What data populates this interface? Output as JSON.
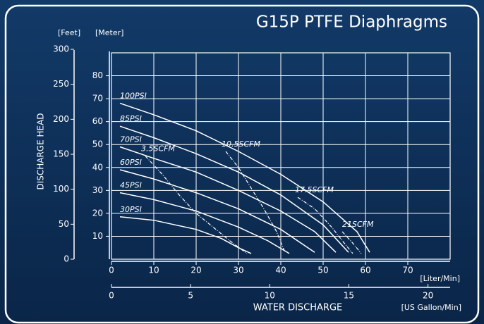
{
  "chart_data": {
    "type": "line",
    "title": "G15P PTFE Diaphragms",
    "y_label": "DISCHARGE HEAD",
    "y_unit": "[Meter]",
    "y2_unit": "[Feet]",
    "x_label": "WATER DISCHARGE",
    "x_unit": "[Liter/Min]",
    "x2_unit": "[US Gallon/Min]",
    "xlim": [
      0,
      80
    ],
    "xticks": [
      0,
      10,
      20,
      30,
      40,
      50,
      60,
      70
    ],
    "x2lim": [
      0,
      21.4
    ],
    "x2ticks": [
      0,
      5,
      10,
      15,
      20
    ],
    "ylim": [
      0,
      90
    ],
    "yticks": [
      10,
      20,
      30,
      40,
      50,
      60,
      70,
      80
    ],
    "y2lim": [
      0,
      295
    ],
    "y2ticks": [
      0,
      50,
      100,
      150,
      200,
      250,
      300
    ],
    "grid": true,
    "color": "#ffffff",
    "series": [
      {
        "name": "100PSI",
        "style": "solid",
        "x": [
          2,
          10,
          20,
          30,
          40,
          50,
          58,
          61
        ],
        "values": [
          68,
          63,
          56,
          47,
          37,
          25,
          12,
          3
        ]
      },
      {
        "name": "85PSI",
        "style": "solid",
        "x": [
          2,
          10,
          20,
          30,
          40,
          50,
          56
        ],
        "values": [
          58,
          53,
          46,
          38,
          28,
          15,
          3
        ]
      },
      {
        "name": "70PSI",
        "style": "solid",
        "x": [
          2,
          10,
          20,
          30,
          40,
          48,
          53
        ],
        "values": [
          49,
          44,
          38,
          30,
          21,
          12,
          3
        ]
      },
      {
        "name": "60PSI",
        "style": "solid",
        "x": [
          2,
          10,
          20,
          30,
          40,
          48
        ],
        "values": [
          39,
          35,
          29,
          22,
          13,
          3
        ]
      },
      {
        "name": "45PSI",
        "style": "solid",
        "x": [
          2,
          10,
          20,
          30,
          37,
          42
        ],
        "values": [
          29,
          26,
          21,
          14,
          8,
          2.5
        ]
      },
      {
        "name": "30PSI",
        "style": "solid",
        "x": [
          2,
          10,
          20,
          26,
          30,
          33
        ],
        "values": [
          18.5,
          17,
          13,
          9,
          5,
          2.5
        ]
      },
      {
        "name": "3.5SCFM",
        "style": "dashed",
        "x": [
          8,
          12,
          16,
          20,
          24,
          28,
          32
        ],
        "values": [
          45,
          37,
          28,
          20,
          14,
          8,
          2.5
        ]
      },
      {
        "name": "10.5SCFM",
        "style": "dashed",
        "x": [
          27,
          30,
          33,
          36,
          39,
          41
        ],
        "values": [
          47,
          40,
          31,
          22,
          12,
          3
        ]
      },
      {
        "name": "17.5SCFM",
        "style": "dashed",
        "x": [
          44,
          48,
          52,
          55,
          57
        ],
        "values": [
          27,
          22,
          14,
          7,
          2.5
        ]
      },
      {
        "name": "21SCFM",
        "style": "dashed",
        "x": [
          54.5,
          57,
          59
        ],
        "values": [
          12,
          7,
          2.5
        ]
      }
    ]
  }
}
